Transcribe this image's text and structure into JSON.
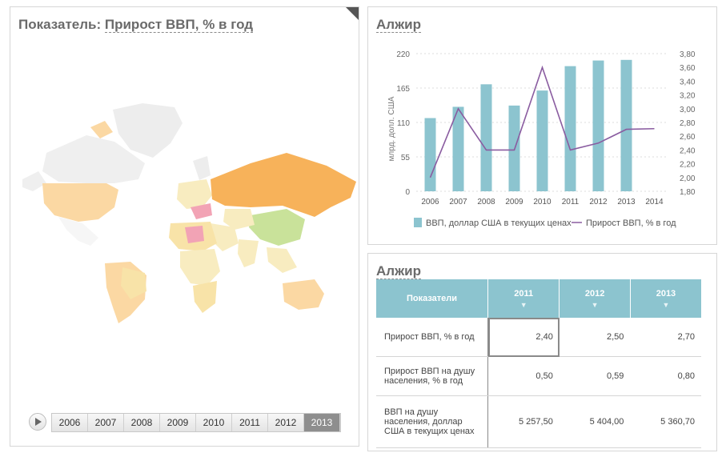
{
  "map_panel": {
    "title_prefix": "Показатель: ",
    "title_link": "Прирост ВВП, % в год",
    "years": [
      "2006",
      "2007",
      "2008",
      "2009",
      "2010",
      "2011",
      "2012",
      "2013"
    ],
    "active_year": "2013"
  },
  "chart_panel": {
    "title": "Алжир",
    "legend_gdp": "ВВП, доллар США в текущих ценах",
    "legend_growth": "Прирост ВВП, % в год"
  },
  "chart_data": {
    "type": "bar",
    "categories": [
      "2006",
      "2007",
      "2008",
      "2009",
      "2010",
      "2011",
      "2012",
      "2013",
      "2014"
    ],
    "series": [
      {
        "name": "ВВП, доллар США в текущих ценах",
        "type": "bar",
        "axis": "left",
        "values": [
          117,
          135,
          171,
          137,
          161,
          200,
          209,
          210,
          null
        ],
        "color": "#8cc4cf"
      },
      {
        "name": "Прирост ВВП, % в год",
        "type": "line",
        "axis": "right",
        "values": [
          2.0,
          3.0,
          2.4,
          2.4,
          3.6,
          2.4,
          2.5,
          2.7,
          2.71
        ],
        "color": "#8a5ca0"
      }
    ],
    "ylabel": "млрд. долл. США",
    "ylim_left": [
      0,
      220
    ],
    "yticks_left": [
      "0",
      "55",
      "110",
      "165",
      "220"
    ],
    "ylim_right": [
      1.8,
      3.8
    ],
    "yticks_right": [
      "1,80",
      "2,00",
      "2,20",
      "2,40",
      "2,60",
      "2,80",
      "3,00",
      "3,20",
      "3,40",
      "3,60",
      "3,80"
    ],
    "grid": true,
    "legend": "bottom"
  },
  "table_panel": {
    "title": "Алжир",
    "header_label": "Показатели",
    "years": [
      "2011",
      "2012",
      "2013"
    ],
    "rows": [
      {
        "label": "Прирост ВВП, % в год",
        "values": [
          "2,40",
          "2,50",
          "2,70"
        ]
      },
      {
        "label": "Прирост ВВП на душу населения, % в год",
        "values": [
          "0,50",
          "0,59",
          "0,80"
        ]
      },
      {
        "label": "ВВП на душу населения, доллар США в текущих ценах",
        "values": [
          "5 257,50",
          "5 404,00",
          "5 360,70"
        ]
      }
    ]
  },
  "colors": {
    "bar": "#8cc4cf",
    "line": "#8a5ca0",
    "map_orange": "#f7b25a",
    "map_light_orange": "#fbd8a3",
    "map_green": "#c9e29a",
    "map_pink": "#f2a3b5",
    "map_grey": "#ededed"
  }
}
